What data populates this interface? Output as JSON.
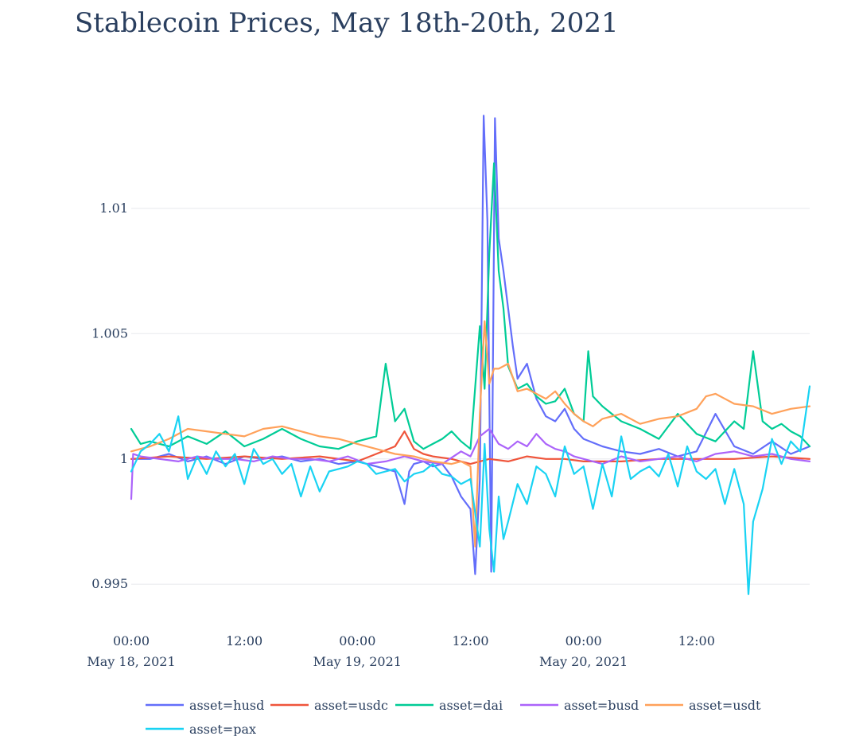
{
  "chart_data": {
    "type": "line",
    "title": "Stablecoin Prices, May 18th-20th, 2021",
    "xlabel": "",
    "ylabel": "",
    "x_range_hours": [
      0,
      72
    ],
    "ylim": [
      0.9938,
      1.0153
    ],
    "y_ticks": [
      {
        "value": 0.995,
        "label": "0.995"
      },
      {
        "value": 1.0,
        "label": "1"
      },
      {
        "value": 1.005,
        "label": "1.005"
      },
      {
        "value": 1.01,
        "label": "1.01"
      }
    ],
    "x_ticks": [
      {
        "hour": 0,
        "time": "00:00",
        "date": "May 18, 2021"
      },
      {
        "hour": 12,
        "time": "12:00",
        "date": ""
      },
      {
        "hour": 24,
        "time": "00:00",
        "date": "May 19, 2021"
      },
      {
        "hour": 36,
        "time": "12:00",
        "date": ""
      },
      {
        "hour": 48,
        "time": "00:00",
        "date": "May 20, 2021"
      },
      {
        "hour": 60,
        "time": "12:00",
        "date": ""
      }
    ],
    "grid": true,
    "legend_position": "bottom",
    "series": [
      {
        "name": "asset=husd",
        "color": "#636efa",
        "x": [
          0,
          2,
          4,
          6,
          8,
          10,
          12,
          14,
          16,
          18,
          20,
          22,
          24,
          26,
          28,
          29,
          29.5,
          30,
          31,
          32,
          33,
          34,
          35,
          36,
          36.5,
          37,
          37.4,
          37.8,
          38.2,
          38.6,
          39,
          39.5,
          40,
          40.5,
          41,
          42,
          43,
          44,
          45,
          46,
          47,
          48,
          50,
          52,
          54,
          56,
          58,
          60,
          62,
          64,
          66,
          68,
          70,
          72
        ],
        "y": [
          1.0,
          1.0,
          1.0002,
          0.9999,
          1.0001,
          0.9998,
          1.0001,
          1.0,
          1.0001,
          0.9999,
          1.0,
          0.9998,
          0.9999,
          0.9997,
          0.9995,
          0.9982,
          0.9995,
          0.9998,
          0.9999,
          0.9997,
          0.9998,
          0.9993,
          0.9985,
          0.998,
          0.9954,
          0.9992,
          1.0137,
          1.0095,
          0.9955,
          1.0136,
          1.0088,
          1.0075,
          1.006,
          1.0045,
          1.0032,
          1.0038,
          1.0024,
          1.0017,
          1.0015,
          1.002,
          1.0012,
          1.0008,
          1.0005,
          1.0003,
          1.0002,
          1.0004,
          1.0001,
          1.0003,
          1.0018,
          1.0005,
          1.0002,
          1.0007,
          1.0002,
          1.0005
        ]
      },
      {
        "name": "asset=usdc",
        "color": "#ef553b",
        "x": [
          0,
          4,
          8,
          12,
          16,
          20,
          24,
          26,
          28,
          29,
          30,
          31,
          32,
          34,
          36,
          38,
          40,
          42,
          44,
          46,
          48,
          52,
          56,
          60,
          64,
          68,
          72
        ],
        "y": [
          1.0,
          1.0001,
          1.0,
          1.0001,
          1.0,
          1.0001,
          0.9999,
          1.0002,
          1.0005,
          1.0011,
          1.0004,
          1.0002,
          1.0001,
          1.0,
          0.9998,
          1.0,
          0.9999,
          1.0001,
          1.0,
          1.0,
          0.9999,
          0.9999,
          1.0,
          1.0,
          1.0,
          1.0001,
          1.0
        ]
      },
      {
        "name": "asset=dai",
        "color": "#00cc96",
        "x": [
          0,
          1,
          2,
          4,
          6,
          8,
          10,
          12,
          14,
          16,
          18,
          20,
          22,
          24,
          26,
          27,
          28,
          29,
          30,
          31,
          32,
          33,
          34,
          35,
          36,
          37,
          37.5,
          38,
          38.5,
          39,
          39.5,
          40,
          41,
          42,
          43,
          44,
          45,
          46,
          47,
          48,
          48.5,
          49,
          50,
          51,
          52,
          54,
          56,
          58,
          60,
          62,
          64,
          65,
          66,
          67,
          68,
          69,
          70,
          71,
          72
        ],
        "y": [
          1.0012,
          1.0006,
          1.0007,
          1.0005,
          1.0009,
          1.0006,
          1.0011,
          1.0005,
          1.0008,
          1.0012,
          1.0008,
          1.0005,
          1.0004,
          1.0007,
          1.0009,
          1.0038,
          1.0015,
          1.002,
          1.0007,
          1.0004,
          1.0006,
          1.0008,
          1.0011,
          1.0007,
          1.0004,
          1.0053,
          1.0028,
          1.0082,
          1.0118,
          1.0075,
          1.006,
          1.0037,
          1.0028,
          1.003,
          1.0025,
          1.0022,
          1.0023,
          1.0028,
          1.0018,
          1.0015,
          1.0043,
          1.0025,
          1.0021,
          1.0018,
          1.0015,
          1.0012,
          1.0008,
          1.0018,
          1.001,
          1.0007,
          1.0015,
          1.0012,
          1.0043,
          1.0015,
          1.0012,
          1.0014,
          1.0011,
          1.0009,
          1.0005
        ]
      },
      {
        "name": "asset=busd",
        "color": "#ab63fa",
        "x": [
          0,
          0.2,
          1,
          3,
          5,
          7,
          9,
          11,
          13,
          15,
          17,
          19,
          21,
          23,
          25,
          27,
          29,
          31,
          33,
          35,
          36,
          37,
          38,
          39,
          40,
          41,
          42,
          43,
          44,
          45,
          46,
          47,
          48,
          50,
          52,
          54,
          56,
          58,
          60,
          62,
          64,
          66,
          68,
          70,
          72
        ],
        "y": [
          0.9984,
          1.0002,
          1.0001,
          1.0,
          0.9999,
          1.0001,
          1.0,
          1.0,
          0.9999,
          1.0001,
          1.0,
          1.0,
          0.9999,
          1.0001,
          0.9998,
          0.9999,
          1.0001,
          0.9999,
          0.9998,
          1.0003,
          1.0001,
          1.0009,
          1.0012,
          1.0006,
          1.0004,
          1.0007,
          1.0005,
          1.001,
          1.0006,
          1.0004,
          1.0003,
          1.0001,
          1.0,
          0.9998,
          1.0001,
          0.9999,
          1.0,
          1.0001,
          0.9999,
          1.0002,
          1.0003,
          1.0001,
          1.0002,
          1.0,
          0.9999
        ]
      },
      {
        "name": "asset=usdt",
        "color": "#ffa15a",
        "x": [
          0,
          2,
          4,
          6,
          8,
          10,
          12,
          14,
          16,
          18,
          20,
          22,
          24,
          26,
          28,
          30,
          32,
          34,
          35,
          36,
          36.5,
          37,
          37.5,
          38,
          38.5,
          39,
          40,
          41,
          42,
          43,
          44,
          45,
          46,
          47,
          48,
          49,
          50,
          52,
          54,
          56,
          58,
          60,
          61,
          62,
          63,
          64,
          66,
          68,
          70,
          72
        ],
        "y": [
          1.0003,
          1.0005,
          1.0008,
          1.0012,
          1.0011,
          1.001,
          1.0009,
          1.0012,
          1.0013,
          1.0011,
          1.0009,
          1.0008,
          1.0006,
          1.0004,
          1.0002,
          1.0001,
          0.9999,
          0.9998,
          0.9999,
          0.9997,
          0.9965,
          1.0018,
          1.0055,
          1.003,
          1.0036,
          1.0036,
          1.0038,
          1.0027,
          1.0028,
          1.0026,
          1.0024,
          1.0027,
          1.0022,
          1.0018,
          1.0015,
          1.0013,
          1.0016,
          1.0018,
          1.0014,
          1.0016,
          1.0017,
          1.002,
          1.0025,
          1.0026,
          1.0024,
          1.0022,
          1.0021,
          1.0018,
          1.002,
          1.0021
        ]
      },
      {
        "name": "asset=pax",
        "color": "#19d3f3",
        "x": [
          0,
          1,
          2,
          3,
          4,
          5,
          6,
          7,
          8,
          9,
          10,
          11,
          12,
          13,
          14,
          15,
          16,
          17,
          18,
          19,
          20,
          21,
          22,
          23,
          24,
          25,
          26,
          27,
          28,
          29,
          30,
          31,
          32,
          33,
          34,
          35,
          36,
          37,
          37.5,
          38,
          38.5,
          39,
          39.5,
          40,
          41,
          42,
          43,
          44,
          45,
          46,
          47,
          48,
          49,
          50,
          51,
          52,
          53,
          54,
          55,
          56,
          57,
          58,
          59,
          60,
          61,
          62,
          63,
          64,
          65,
          65.5,
          66,
          67,
          68,
          69,
          70,
          71,
          72
        ],
        "y": [
          0.9995,
          1.0003,
          1.0006,
          1.001,
          1.0003,
          1.0017,
          0.9992,
          1.0001,
          0.9994,
          1.0003,
          0.9997,
          1.0002,
          0.999,
          1.0004,
          0.9998,
          1.0,
          0.9994,
          0.9998,
          0.9985,
          0.9997,
          0.9987,
          0.9995,
          0.9996,
          0.9997,
          0.9999,
          0.9998,
          0.9994,
          0.9995,
          0.9996,
          0.9991,
          0.9994,
          0.9995,
          0.9998,
          0.9994,
          0.9993,
          0.999,
          0.9992,
          0.9965,
          1.0006,
          0.9972,
          0.9955,
          0.9985,
          0.9968,
          0.9975,
          0.999,
          0.9982,
          0.9997,
          0.9994,
          0.9985,
          1.0005,
          0.9994,
          0.9997,
          0.998,
          0.9998,
          0.9985,
          1.0009,
          0.9992,
          0.9995,
          0.9997,
          0.9993,
          1.0002,
          0.9989,
          1.0005,
          0.9995,
          0.9992,
          0.9996,
          0.9982,
          0.9996,
          0.9982,
          0.9946,
          0.9975,
          0.9988,
          1.0008,
          0.9998,
          1.0007,
          1.0003,
          1.0029
        ]
      }
    ]
  }
}
